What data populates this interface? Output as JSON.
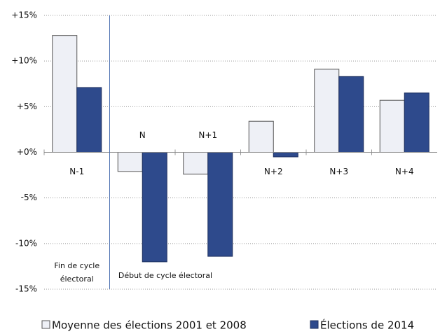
{
  "chart_data": {
    "type": "bar",
    "categories": [
      "N-1",
      "N",
      "N+1",
      "N+2",
      "N+3",
      "N+4"
    ],
    "series": [
      {
        "name": "Moyenne des élections 2001 et 2008",
        "color": "#eef0f6",
        "values": [
          12.8,
          -2.1,
          -2.4,
          3.4,
          9.1,
          5.7
        ]
      },
      {
        "name": "Élections de 2014",
        "color": "#2e4a8c",
        "values": [
          7.1,
          -12.0,
          -11.4,
          -0.5,
          8.3,
          6.5
        ]
      }
    ],
    "ylim": [
      -15,
      15
    ],
    "yticks": [
      {
        "value": -15,
        "label": "-15%"
      },
      {
        "value": -10,
        "label": "-10%"
      },
      {
        "value": -5,
        "label": "-5%"
      },
      {
        "value": 0,
        "label": "+0%"
      },
      {
        "value": 5,
        "label": "+5%"
      },
      {
        "value": 10,
        "label": "+10%"
      },
      {
        "value": 15,
        "label": "+15%"
      }
    ],
    "grid": true,
    "annotations": [
      {
        "lines": [
          "Fin de cycle",
          "électoral"
        ]
      },
      {
        "lines": [
          "Début de cycle électoral"
        ]
      }
    ],
    "legend": "bottom"
  }
}
